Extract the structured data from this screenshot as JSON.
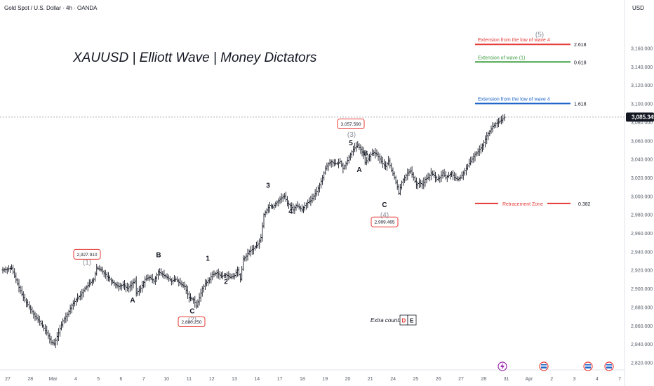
{
  "header": {
    "symbol_info": "Gold Spot / U.S. Dollar · 4h · OANDA",
    "currency": "USD"
  },
  "chart_title": "XAUUSD | Elliott Wave | Money Dictators",
  "price_tag": "3,085.345",
  "extra_count": {
    "label": "Extra count:",
    "d": "D",
    "e": "E"
  },
  "colors": {
    "red": "#e53935",
    "green": "#43a047",
    "blue": "#1e66c8",
    "candle": "#131722",
    "axis_text": "#555b66"
  },
  "chart_data": {
    "type": "bar",
    "title": "XAUUSD | Elliott Wave | Money Dictators",
    "ylim": [
      2812,
      3212
    ],
    "y_ticks": [
      2820,
      2840,
      2860,
      2880,
      2900,
      2920,
      2940,
      2960,
      2980,
      3000,
      3020,
      3040,
      3060,
      3080,
      3100,
      3120,
      3140,
      3160
    ],
    "x_ticks": [
      "27",
      "28",
      "Mar",
      "4",
      "5",
      "6",
      "7",
      "10",
      "11",
      "12",
      "13",
      "14",
      "17",
      "18",
      "19",
      "20",
      "21",
      "24",
      "25",
      "26",
      "27",
      "28",
      "31",
      "Apr",
      "2",
      "3",
      "4",
      "7"
    ],
    "ohlc_path": [
      [
        0,
        2920
      ],
      [
        6,
        2922
      ],
      [
        10,
        2905
      ],
      [
        14,
        2890
      ],
      [
        18,
        2880
      ],
      [
        22,
        2870
      ],
      [
        26,
        2862
      ],
      [
        30,
        2852
      ],
      [
        33,
        2842
      ],
      [
        35,
        2840
      ],
      [
        38,
        2852
      ],
      [
        41,
        2865
      ],
      [
        44,
        2872
      ],
      [
        47,
        2882
      ],
      [
        50,
        2888
      ],
      [
        53,
        2893
      ],
      [
        56,
        2900
      ],
      [
        59,
        2905
      ],
      [
        62,
        2910
      ],
      [
        64,
        2922
      ],
      [
        67,
        2920
      ],
      [
        70,
        2915
      ],
      [
        73,
        2910
      ],
      [
        76,
        2905
      ],
      [
        79,
        2902
      ],
      [
        82,
        2904
      ],
      [
        85,
        2900
      ],
      [
        88,
        2905
      ],
      [
        90,
        2908
      ],
      [
        91,
        2895
      ],
      [
        94,
        2900
      ],
      [
        97,
        2910
      ],
      [
        100,
        2912
      ],
      [
        103,
        2908
      ],
      [
        106,
        2918
      ],
      [
        109,
        2915
      ],
      [
        112,
        2912
      ],
      [
        115,
        2908
      ],
      [
        118,
        2910
      ],
      [
        121,
        2905
      ],
      [
        124,
        2902
      ],
      [
        127,
        2890
      ],
      [
        130,
        2888
      ],
      [
        132,
        2881
      ],
      [
        134,
        2890
      ],
      [
        136,
        2900
      ],
      [
        138,
        2905
      ],
      [
        141,
        2910
      ],
      [
        143,
        2915
      ],
      [
        146,
        2917
      ],
      [
        149,
        2913
      ],
      [
        152,
        2915
      ],
      [
        155,
        2912
      ],
      [
        158,
        2914
      ],
      [
        160,
        2920
      ],
      [
        162,
        2910
      ],
      [
        164,
        2932
      ],
      [
        166,
        2935
      ],
      [
        168,
        2940
      ],
      [
        170,
        2942
      ],
      [
        172,
        2945
      ],
      [
        174,
        2948
      ],
      [
        176,
        2955
      ],
      [
        178,
        2980
      ],
      [
        180,
        2985
      ],
      [
        182,
        2990
      ],
      [
        184,
        2988
      ],
      [
        186,
        2992
      ],
      [
        188,
        2995
      ],
      [
        190,
        2998
      ],
      [
        192,
        3000
      ],
      [
        194,
        2992
      ],
      [
        196,
        2990
      ],
      [
        198,
        2985
      ],
      [
        200,
        2990
      ],
      [
        202,
        2988
      ],
      [
        204,
        2985
      ],
      [
        206,
        2990
      ],
      [
        208,
        2993
      ],
      [
        210,
        2995
      ],
      [
        212,
        3000
      ],
      [
        214,
        3005
      ],
      [
        216,
        3012
      ],
      [
        218,
        3020
      ],
      [
        220,
        3030
      ],
      [
        222,
        3035
      ],
      [
        224,
        3037
      ],
      [
        226,
        3035
      ],
      [
        228,
        3035
      ],
      [
        230,
        3037
      ],
      [
        232,
        3030
      ],
      [
        234,
        3035
      ],
      [
        236,
        3042
      ],
      [
        238,
        3048
      ],
      [
        240,
        3052
      ],
      [
        242,
        3055
      ],
      [
        244,
        3050
      ],
      [
        246,
        3045
      ],
      [
        247,
        3036
      ],
      [
        249,
        3040
      ],
      [
        251,
        3045
      ],
      [
        253,
        3047
      ],
      [
        255,
        3045
      ],
      [
        257,
        3040
      ],
      [
        259,
        3035
      ],
      [
        261,
        3032
      ],
      [
        263,
        3038
      ],
      [
        265,
        3028
      ],
      [
        267,
        3020
      ],
      [
        269,
        3010
      ],
      [
        270,
        3003
      ],
      [
        272,
        3015
      ],
      [
        274,
        3020
      ],
      [
        276,
        3025
      ],
      [
        278,
        3027
      ],
      [
        280,
        3020
      ],
      [
        282,
        3012
      ],
      [
        284,
        3015
      ],
      [
        286,
        3012
      ],
      [
        288,
        3018
      ],
      [
        290,
        3020
      ],
      [
        292,
        3025
      ],
      [
        294,
        3022
      ],
      [
        296,
        3018
      ],
      [
        298,
        3020
      ],
      [
        300,
        3025
      ],
      [
        302,
        3020
      ],
      [
        304,
        3022
      ],
      [
        306,
        3025
      ],
      [
        308,
        3020
      ],
      [
        310,
        3018
      ],
      [
        312,
        3020
      ],
      [
        314,
        3025
      ],
      [
        316,
        3030
      ],
      [
        318,
        3035
      ],
      [
        320,
        3040
      ],
      [
        322,
        3045
      ],
      [
        324,
        3048
      ],
      [
        326,
        3052
      ],
      [
        328,
        3058
      ],
      [
        330,
        3065
      ],
      [
        332,
        3070
      ],
      [
        334,
        3075
      ],
      [
        336,
        3078
      ],
      [
        338,
        3080
      ],
      [
        340,
        3082
      ],
      [
        342,
        3085
      ]
    ],
    "price_labels": [
      {
        "text": "2,927.910",
        "price": 2937
      },
      {
        "text": "2,880.250",
        "price": 2864
      },
      {
        "text": "3,057.590",
        "price": 3078
      },
      {
        "text": "2,999.465",
        "price": 2972
      }
    ],
    "wave_labels": [
      {
        "text": "(1)",
        "price": 2929,
        "style": "paren"
      },
      {
        "text": "B",
        "price": 2937,
        "style": "bold"
      },
      {
        "text": "A",
        "price": 2888,
        "style": "bold"
      },
      {
        "text": "C",
        "price": 2876,
        "style": "bold"
      },
      {
        "text": "(2)",
        "price": 2867,
        "style": "paren"
      },
      {
        "text": "1",
        "price": 2933,
        "style": "bold"
      },
      {
        "text": "2",
        "price": 2908,
        "style": "bold"
      },
      {
        "text": "3",
        "price": 3012,
        "style": "bold"
      },
      {
        "text": "4",
        "price": 2984,
        "style": "bold"
      },
      {
        "text": "(3)",
        "price": 3067,
        "style": "paren"
      },
      {
        "text": "5",
        "price": 3058,
        "style": "bold"
      },
      {
        "text": "B",
        "price": 3047,
        "style": "bold"
      },
      {
        "text": "A",
        "price": 3029,
        "style": "bold"
      },
      {
        "text": "C",
        "price": 2991,
        "style": "bold"
      },
      {
        "text": "(4)",
        "price": 2980,
        "style": "paren"
      },
      {
        "text": "(5)",
        "price": 3175,
        "style": "paren"
      }
    ],
    "fib_levels": [
      {
        "label": "Extension from the low of wave 4",
        "ratio": "2.618",
        "price": 3164,
        "color": "red"
      },
      {
        "label": "Extension of wave (1)",
        "ratio": "0.618",
        "price": 3145,
        "color": "green"
      },
      {
        "label": "Extension from the low of wave 4",
        "ratio": "1.618",
        "price": 3100,
        "color": "blue"
      },
      {
        "label": "Retracement Zone",
        "ratio": "0.382",
        "price": 2992,
        "color": "red"
      }
    ]
  }
}
